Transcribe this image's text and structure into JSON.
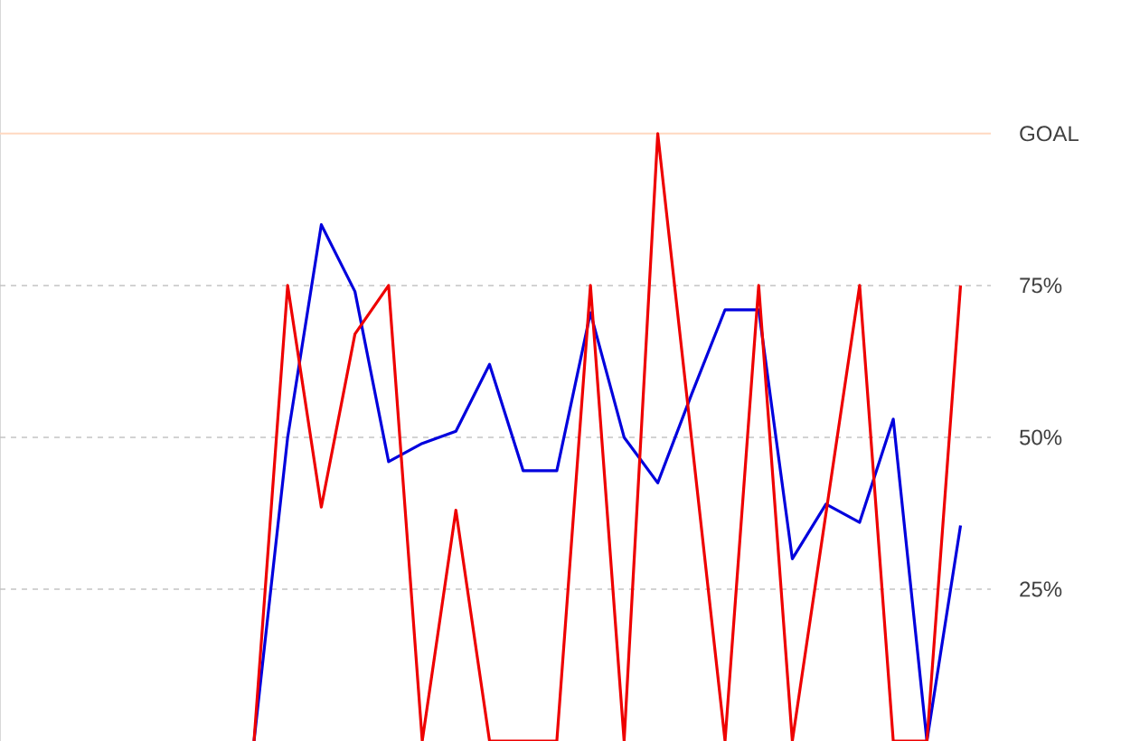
{
  "chart_data": {
    "type": "line",
    "categories": [
      null,
      null,
      null,
      null,
      null,
      null,
      null,
      null,
      null,
      null,
      null,
      null,
      null,
      null,
      null,
      null,
      null,
      null,
      null,
      null,
      null,
      null,
      null,
      null,
      null,
      null,
      null,
      null,
      null
    ],
    "series": [
      {
        "color": "#0000dd",
        "values": [
          null,
          null,
          null,
          null,
          null,
          null,
          null,
          0,
          50,
          85,
          74,
          46,
          49,
          51,
          62,
          44.5,
          44.5,
          70.5,
          50,
          42.5,
          57,
          71,
          71,
          30,
          39,
          36,
          53,
          0,
          35.5
        ]
      },
      {
        "color": "#ee0000",
        "values": [
          null,
          null,
          null,
          null,
          null,
          null,
          null,
          0,
          75,
          38.5,
          67,
          75,
          0,
          38,
          0,
          0,
          0,
          75,
          0,
          100,
          50,
          0,
          75,
          0,
          37.5,
          75,
          0,
          0,
          75
        ]
      }
    ],
    "ylim": [
      0,
      122
    ],
    "yticks": [
      {
        "value": 25,
        "label": "25%"
      },
      {
        "value": 50,
        "label": "50%"
      },
      {
        "value": 75,
        "label": "75%"
      }
    ],
    "grid": "y",
    "ref_lines": [
      {
        "axis": "y",
        "value": 100,
        "label": "GOAL",
        "color": "#ffd8c0"
      }
    ],
    "marker": "none",
    "line_style": "solid"
  }
}
